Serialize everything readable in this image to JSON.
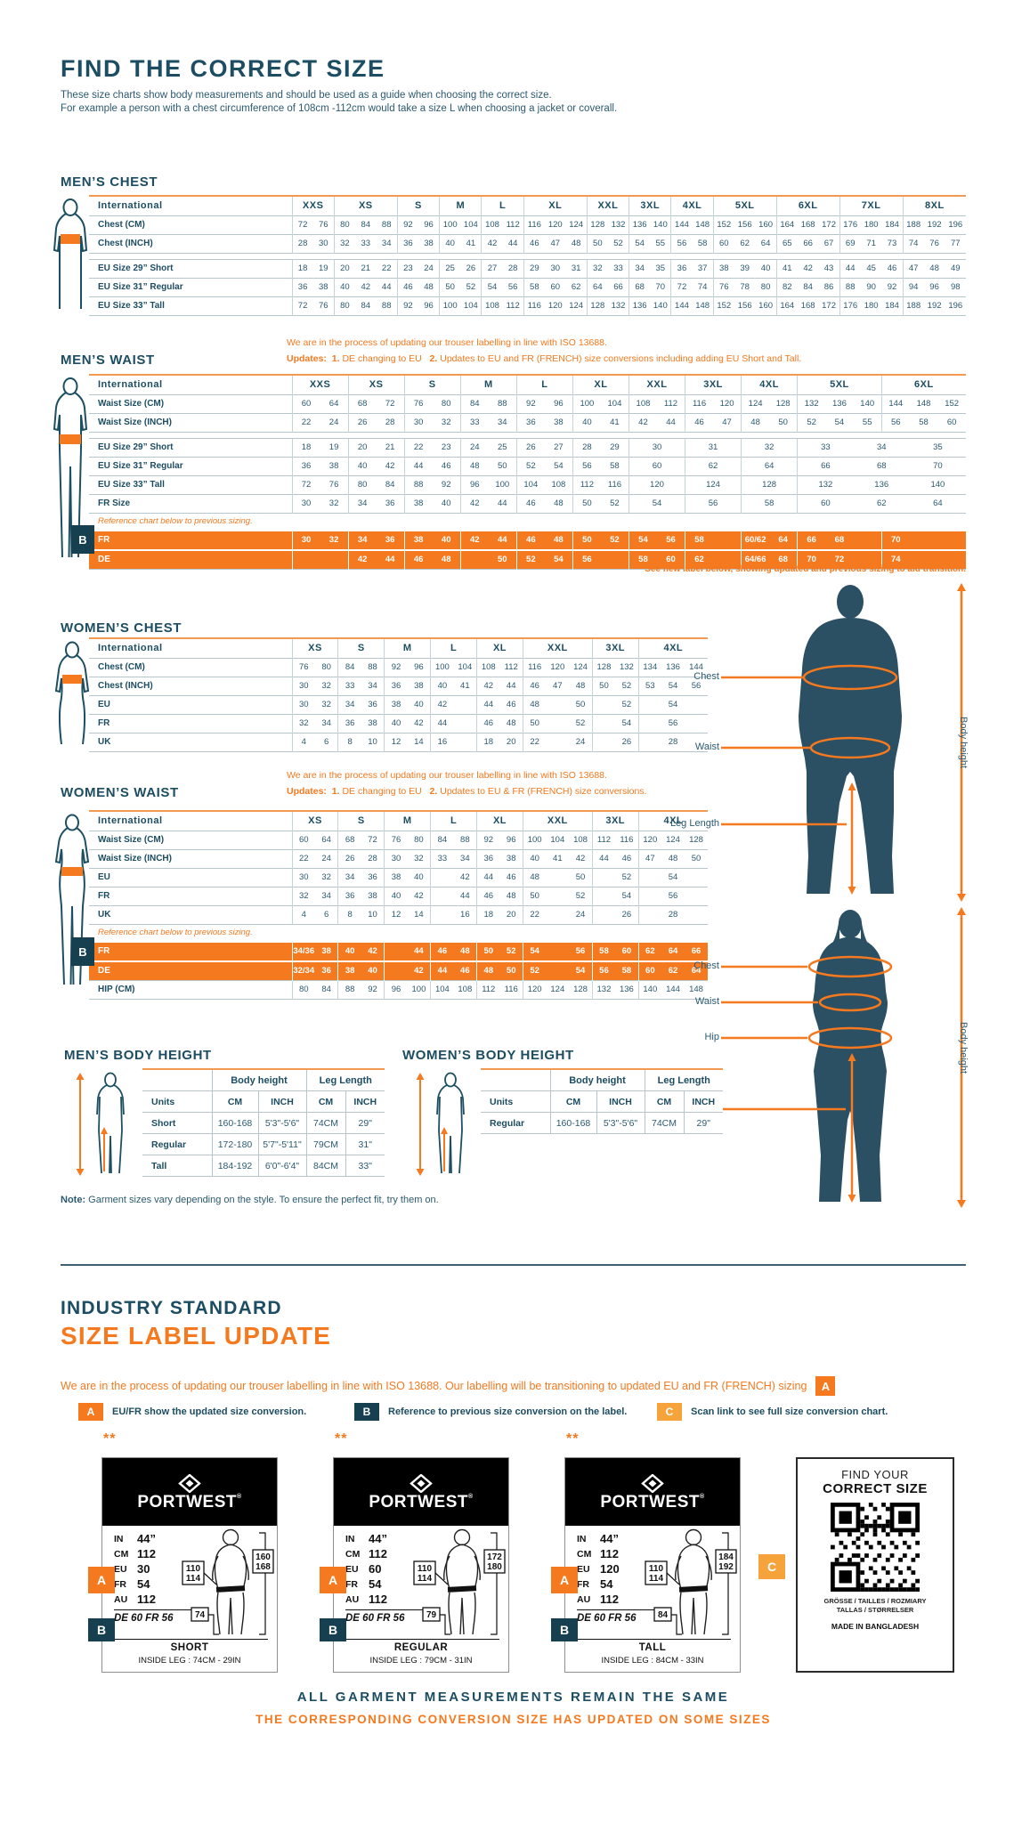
{
  "page": {
    "title": "FIND THE CORRECT SIZE",
    "intro1": "These size charts show body measurements and should be used as a guide when choosing the correct size.",
    "intro2": "For example a person with a chest circumference of 108cm -112cm would take a size L when choosing a jacket or coverall."
  },
  "colors": {
    "orange": "#f4791f",
    "teal": "#1c4d62",
    "amber": "#f6a33c",
    "ref_row": "#f4791f"
  },
  "badges": {
    "a": "A",
    "b": "B",
    "c": "C"
  },
  "tables": {
    "mens_chest": {
      "heading": "MEN’S CHEST",
      "first_col": "International",
      "groups": [
        {
          "t": "XXS",
          "s": 2
        },
        {
          "t": "XS",
          "s": 3
        },
        {
          "t": "S",
          "s": 2
        },
        {
          "t": "M",
          "s": 2
        },
        {
          "t": "L",
          "s": 2
        },
        {
          "t": "XL",
          "s": 3
        },
        {
          "t": "XXL",
          "s": 2
        },
        {
          "t": "3XL",
          "s": 2
        },
        {
          "t": "4XL",
          "s": 2
        },
        {
          "t": "5XL",
          "s": 3
        },
        {
          "t": "6XL",
          "s": 3
        },
        {
          "t": "7XL",
          "s": 3
        },
        {
          "t": "8XL",
          "s": 3
        }
      ],
      "rows": [
        {
          "label": "Chest (CM)",
          "cells": "72|76|80|84|88|92|96|100|104|108|112|116|120|124|128|132|136|140|144|148|152|156|160|164|168|172|176|180|184|188|192|196"
        },
        {
          "label": "Chest (INCH)",
          "cells": "28|30|32|33|34|36|38|40|41|42|44|46|47|48|50|52|54|55|56|58|60|62|64|65|66|67|69|71|73|74|76|77"
        },
        {
          "gap": true
        },
        {
          "label": "EU Size 29” Short",
          "cells": "18|19|20|21|22|23|24|25|26|27|28|29|30|31|32|33|34|35|36|37|38|39|40|41|42|43|44|45|46|47|48|49"
        },
        {
          "label": "EU Size 31” Regular",
          "cells": "36|38|40|42|44|46|48|50|52|54|56|58|60|62|64|66|68|70|72|74|76|78|80|82|84|86|88|90|92|94|96|98"
        },
        {
          "label": "EU Size 33” Tall",
          "cells": "72|76|80|84|88|92|96|100|104|108|112|116|120|124|128|132|136|140|144|148|152|156|160|164|168|172|176|180|184|188|192|196"
        }
      ]
    },
    "mens_waist": {
      "heading": "MEN’S WAIST",
      "first_col": "International",
      "note_line1": "We are in the process of updating our trouser labelling in line with ISO 13688.",
      "updates_label": "Updates:",
      "update1_n": "1.",
      "update1": "DE changing to EU",
      "update2_n": "2.",
      "update2": "Updates to EU and FR (FRENCH) size conversions including adding EU Short and Tall.",
      "footnote": "**See new label below, showing updated and previous sizing to aid transition.",
      "groups": [
        {
          "t": "XXS",
          "s": 2
        },
        {
          "t": "XS",
          "s": 2
        },
        {
          "t": "S",
          "s": 2
        },
        {
          "t": "M",
          "s": 2
        },
        {
          "t": "L",
          "s": 2
        },
        {
          "t": "XL",
          "s": 2
        },
        {
          "t": "XXL",
          "s": 2
        },
        {
          "t": "3XL",
          "s": 2
        },
        {
          "t": "4XL",
          "s": 2
        },
        {
          "t": "5XL",
          "s": 3
        },
        {
          "t": "6XL",
          "s": 3
        }
      ],
      "rows": [
        {
          "label": "Waist Size (CM)",
          "cells": "60|64|68|72|76|80|84|88|92|96|100|104|108|112|116|120|124|128|132|136|140|144|148|152"
        },
        {
          "label": "Waist Size (INCH)",
          "cells": "22|24|26|28|30|32|33|34|36|38|40|41|42|44|46|47|48|50|52|54|55|56|58|60"
        },
        {
          "gap": true
        },
        {
          "label": "EU Size 29” Short",
          "cells": "18|19|20|21|22|23|24|25|26|27|28|29|30:2|31:2|32:2|33:2|34:2|35:2"
        },
        {
          "label": "EU Size 31” Regular",
          "cells": "36|38|40|42|44|46|48|50|52|54|56|58|60:2|62:2|64:2|66:2|68:2|70:2"
        },
        {
          "label": "EU Size 33” Tall",
          "cells": "72|76|80|84|88|92|96|100|104|108|112|116|120:2|124:2|128:2|132:2|136:2|140:2"
        },
        {
          "label": "FR Size",
          "cells": "30|32|34|36|38|40|42|44|46|48|50|52|54:2|56:2|58:2|60:2|62:2|64:2"
        },
        {
          "note": "Reference chart below to previous sizing."
        },
        {
          "label": "FR",
          "orange": true,
          "cells": "30|32|34|36|38|40|42|44|46|48|50|52|54|56|58||60/62|64|66|68||70||"
        },
        {
          "label": "DE",
          "orange": true,
          "cells": "||42|44|46|48||50|52|54|56||58|60|62||64/66|68|70|72||74||"
        }
      ]
    },
    "womens_chest": {
      "heading": "WOMEN’S CHEST",
      "first_col": "International",
      "groups": [
        {
          "t": "XS",
          "s": 2
        },
        {
          "t": "S",
          "s": 2
        },
        {
          "t": "M",
          "s": 2
        },
        {
          "t": "L",
          "s": 2
        },
        {
          "t": "XL",
          "s": 2
        },
        {
          "t": "XXL",
          "s": 3
        },
        {
          "t": "3XL",
          "s": 2
        },
        {
          "t": "4XL",
          "s": 3
        }
      ],
      "rows": [
        {
          "label": "Chest (CM)",
          "cells": "76|80|84|88|92|96|100|104|108|112|116|120|124|128|132|134|136|144"
        },
        {
          "label": "Chest (INCH)",
          "cells": "30|32|33|34|36|38|40|41|42|44|46|47|48|50|52|53|54|56"
        },
        {
          "label": "EU",
          "cells": "30|32|34|36|38|40|42||44|46|48||50||52||54|"
        },
        {
          "label": "FR",
          "cells": "32|34|36|38|40|42|44||46|48|50||52||54||56|"
        },
        {
          "label": "UK",
          "cells": "4|6|8|10|12|14|16||18|20|22||24||26||28|"
        }
      ]
    },
    "womens_waist": {
      "heading": "WOMEN’S WAIST",
      "first_col": "International",
      "note_line1": "We are in the process of updating our trouser labelling in line with ISO 13688.",
      "updates_label": "Updates:",
      "update1_n": "1.",
      "update1": "DE changing to EU",
      "update2_n": "2.",
      "update2": "Updates to EU & FR (FRENCH) size conversions.",
      "groups": [
        {
          "t": "XS",
          "s": 2
        },
        {
          "t": "S",
          "s": 2
        },
        {
          "t": "M",
          "s": 2
        },
        {
          "t": "L",
          "s": 2
        },
        {
          "t": "XL",
          "s": 2
        },
        {
          "t": "XXL",
          "s": 3
        },
        {
          "t": "3XL",
          "s": 2
        },
        {
          "t": "4XL",
          "s": 3
        }
      ],
      "rows": [
        {
          "label": "Waist Size (CM)",
          "cells": "60|64|68|72|76|80|84|88|92|96|100|104|108|112|116|120|124|128"
        },
        {
          "label": "Waist Size (INCH)",
          "cells": "22|24|26|28|30|32|33|34|36|38|40|41|42|44|46|47|48|50"
        },
        {
          "label": "EU",
          "cells": "30|32|34|36|38|40||42|44|46|48||50||52||54|"
        },
        {
          "label": "FR",
          "cells": "32|34|36|38|40|42||44|46|48|50||52||54||56|"
        },
        {
          "label": "UK",
          "cells": "4|6|8|10|12|14||16|18|20|22||24||26||28|"
        },
        {
          "note": "Reference chart below to previous sizing."
        },
        {
          "label": "FR",
          "orange": true,
          "cells": "34/36|38|40|42||44|46|48|50|52|54||56|58|60|62|64|66"
        },
        {
          "label": "DE",
          "orange": true,
          "cells": "32/34|36|38|40||42|44|46|48|50|52||54|56|58|60|62|64"
        },
        {
          "label": "HIP (CM)",
          "cells": "80|84|88|92|96|100|104|108|112|116|120|124|128|132|136|140|144|148"
        }
      ]
    }
  },
  "body_height": {
    "mens": {
      "heading": "MEN’S BODY HEIGHT",
      "col1": "Body height",
      "col2": "Leg Length",
      "units": "Units",
      "unit_cols": [
        "CM",
        "INCH",
        "CM",
        "INCH"
      ],
      "rows": [
        [
          "Short",
          "160-168",
          "5'3\"-5'6\"",
          "74CM",
          "29\""
        ],
        [
          "Regular",
          "172-180",
          "5'7\"-5'11\"",
          "79CM",
          "31\""
        ],
        [
          "Tall",
          "184-192",
          "6'0\"-6'4\"",
          "84CM",
          "33\""
        ]
      ]
    },
    "womens": {
      "heading": "WOMEN’S BODY HEIGHT",
      "col1": "Body height",
      "col2": "Leg Length",
      "units": "Units",
      "unit_cols": [
        "CM",
        "INCH",
        "CM",
        "INCH"
      ],
      "rows": [
        [
          "Regular",
          "160-168",
          "5'3\"-5'6\"",
          "74CM",
          "29\""
        ]
      ]
    }
  },
  "figures": {
    "man": {
      "chest": "Chest",
      "waist": "Waist",
      "leg": "Leg Length",
      "height": "Body height"
    },
    "woman": {
      "chest": "Chest",
      "waist": "Waist",
      "hip": "Hip",
      "leg": "Leg Length",
      "height": "Body height"
    }
  },
  "note_bottom": {
    "b": "Note:",
    "t": "Garment sizes vary depending on the style. To ensure the perfect fit, try them on."
  },
  "label_update": {
    "heading1": "INDUSTRY STANDARD",
    "heading2": "SIZE LABEL UPDATE",
    "intro": "We are in the process of updating our trouser labelling in line with ISO 13688. Our labelling will be transitioning to updated EU and FR (FRENCH) sizing",
    "legend": [
      {
        "b": "A",
        "text": "EU/FR show the updated size conversion."
      },
      {
        "b": "B",
        "text": "Reference to previous size conversion on the label."
      },
      {
        "b": "C",
        "text": "Scan link to see full size conversion chart."
      }
    ],
    "stars": "**",
    "brand": "PORTWEST",
    "reg": "®",
    "cards": [
      {
        "fit": "SHORT",
        "inside_leg": "INSIDE LEG : 74CM - 29IN",
        "rows": [
          [
            "IN",
            "44”"
          ],
          [
            "CM",
            "112"
          ],
          [
            "EU",
            "30"
          ],
          [
            "FR",
            "54"
          ],
          [
            "AU",
            "112"
          ]
        ],
        "ref": "DE 60 FR 56",
        "waist": [
          "110",
          "114"
        ],
        "height": [
          "160",
          "168"
        ],
        "leg": "74"
      },
      {
        "fit": "REGULAR",
        "inside_leg": "INSIDE LEG : 79CM - 31IN",
        "rows": [
          [
            "IN",
            "44”"
          ],
          [
            "CM",
            "112"
          ],
          [
            "EU",
            "60"
          ],
          [
            "FR",
            "54"
          ],
          [
            "AU",
            "112"
          ]
        ],
        "ref": "DE 60 FR 56",
        "waist": [
          "110",
          "114"
        ],
        "height": [
          "172",
          "180"
        ],
        "leg": "79"
      },
      {
        "fit": "TALL",
        "inside_leg": "INSIDE LEG : 84CM - 33IN",
        "rows": [
          [
            "IN",
            "44”"
          ],
          [
            "CM",
            "112"
          ],
          [
            "EU",
            "120"
          ],
          [
            "FR",
            "54"
          ],
          [
            "AU",
            "112"
          ]
        ],
        "ref": "DE 60 FR 56",
        "waist": [
          "110",
          "114"
        ],
        "height": [
          "184",
          "192"
        ],
        "leg": "84"
      }
    ],
    "qr": {
      "line1": "FIND YOUR",
      "line2": "CORRECT SIZE",
      "langs1": "GRÖSSE / TAILLES / ROZMIARY",
      "langs2": "TALLAS / STØRRELSER",
      "made": "MADE IN BANGLADESH"
    },
    "footer1": "ALL GARMENT MEASUREMENTS REMAIN THE SAME",
    "footer2": "THE CORRESPONDING CONVERSION SIZE HAS UPDATED ON SOME SIZES"
  }
}
